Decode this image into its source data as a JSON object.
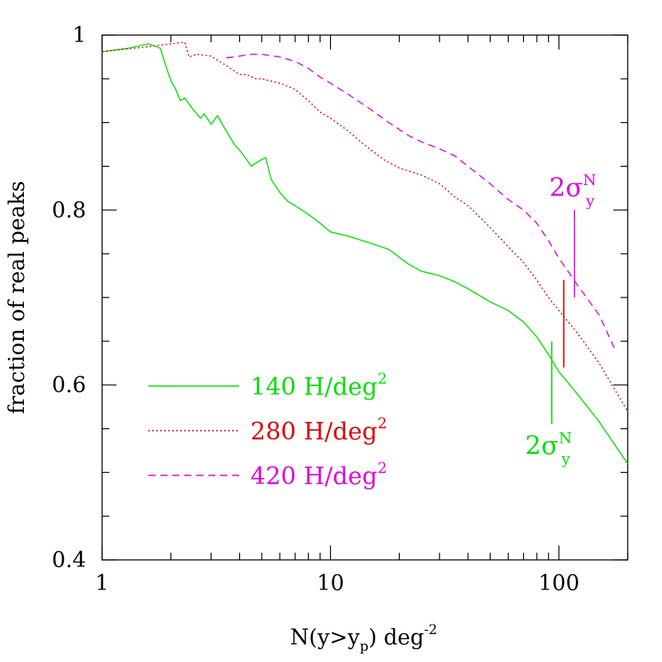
{
  "colors": {
    "green": "#00e000",
    "red": "#e00000",
    "magenta": "#e000e0",
    "axis": "#000000"
  },
  "chart_data": {
    "type": "line",
    "xscale": "log",
    "xlim": [
      1,
      200
    ],
    "ylim": [
      0.4,
      1.0
    ],
    "xlabel": {
      "main": "N(y>y",
      "sub": "p",
      "tail": ") deg",
      "sup": "-2"
    },
    "ylabel": "fraction of real peaks",
    "xticks": [
      {
        "v": 1,
        "label": "1"
      },
      {
        "v": 10,
        "label": "10"
      },
      {
        "v": 100,
        "label": "100"
      }
    ],
    "yticks": [
      {
        "v": 0.4,
        "label": "0.4"
      },
      {
        "v": 0.6,
        "label": "0.6"
      },
      {
        "v": 0.8,
        "label": "0.8"
      },
      {
        "v": 1.0,
        "label": "1"
      }
    ],
    "legend_position": "bottom-left",
    "series": [
      {
        "id": "s140",
        "label": "140 H/deg",
        "sup": "2",
        "color": "#00e000",
        "dash": "",
        "x": [
          1,
          1.3,
          1.6,
          1.8,
          1.9,
          2.0,
          2.1,
          2.2,
          2.3,
          2.5,
          2.7,
          2.8,
          3.0,
          3.2,
          3.5,
          3.8,
          4.1,
          4.5,
          4.8,
          5.2,
          5.5,
          6.0,
          6.5,
          7.0,
          8.0,
          9.0,
          10,
          12,
          15,
          18,
          22,
          25,
          30,
          35,
          40,
          50,
          60,
          70,
          80,
          90,
          100,
          120,
          150,
          200
        ],
        "y": [
          0.981,
          0.985,
          0.99,
          0.985,
          0.965,
          0.948,
          0.938,
          0.925,
          0.928,
          0.915,
          0.905,
          0.91,
          0.898,
          0.908,
          0.89,
          0.875,
          0.865,
          0.85,
          0.855,
          0.86,
          0.835,
          0.82,
          0.81,
          0.805,
          0.795,
          0.785,
          0.775,
          0.77,
          0.762,
          0.755,
          0.738,
          0.73,
          0.725,
          0.718,
          0.71,
          0.695,
          0.685,
          0.672,
          0.655,
          0.635,
          0.615,
          0.59,
          0.558,
          0.51
        ]
      },
      {
        "id": "s280",
        "label": "280 H/deg",
        "sup": "2",
        "color": "#e00000",
        "dash": "2 3",
        "x": [
          1,
          1.5,
          2.0,
          2.3,
          2.4,
          2.6,
          3.0,
          3.5,
          4.0,
          4.3,
          4.7,
          5.0,
          6.0,
          7.0,
          8.0,
          9.0,
          10,
          12,
          14,
          17,
          20,
          25,
          30,
          35,
          40,
          50,
          60,
          70,
          80,
          90,
          100,
          120,
          150,
          200
        ],
        "y": [
          0.981,
          0.986,
          0.99,
          0.992,
          0.975,
          0.978,
          0.976,
          0.965,
          0.955,
          0.955,
          0.95,
          0.95,
          0.945,
          0.938,
          0.925,
          0.912,
          0.905,
          0.89,
          0.875,
          0.858,
          0.848,
          0.84,
          0.83,
          0.815,
          0.805,
          0.78,
          0.758,
          0.74,
          0.72,
          0.7,
          0.685,
          0.66,
          0.625,
          0.57
        ]
      },
      {
        "id": "s420",
        "label": "420 H/deg",
        "sup": "2",
        "color": "#e000e0",
        "dash": "9 6",
        "x": [
          3.5,
          4.0,
          4.5,
          5.0,
          6.0,
          7.0,
          8.0,
          9.0,
          10,
          12,
          15,
          18,
          22,
          25,
          30,
          35,
          40,
          50,
          60,
          70,
          80,
          90,
          100,
          120,
          150,
          175
        ],
        "y": [
          0.974,
          0.976,
          0.978,
          0.978,
          0.975,
          0.97,
          0.962,
          0.952,
          0.945,
          0.932,
          0.915,
          0.9,
          0.885,
          0.878,
          0.87,
          0.862,
          0.85,
          0.83,
          0.812,
          0.8,
          0.785,
          0.765,
          0.745,
          0.715,
          0.68,
          0.642
        ]
      }
    ],
    "markers": [
      {
        "id": "m140",
        "x": 93,
        "y1": 0.555,
        "y2": 0.65,
        "color": "#00e000",
        "label": "2σ",
        "sub": "y",
        "sup": "N",
        "label_x": 90,
        "label_y": 0.53
      },
      {
        "id": "m280",
        "x": 105,
        "y1": 0.62,
        "y2": 0.72,
        "color": "#e00000"
      },
      {
        "id": "m420",
        "x": 117,
        "y1": 0.7,
        "y2": 0.8,
        "color": "#e000e0",
        "label": "2σ",
        "sub": "y",
        "sup": "N",
        "label_x": 115,
        "label_y": 0.825
      }
    ]
  }
}
